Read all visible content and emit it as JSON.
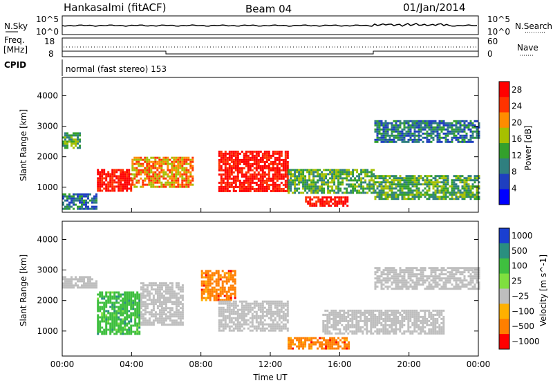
{
  "header": {
    "station": "Hankasalmi (fitACF)",
    "beam": "Beam 04",
    "date": "01/Jan/2014"
  },
  "summary_panels": {
    "nsky": {
      "label": "N.Sky",
      "tick_high": "10^5",
      "tick_low": "10^0"
    },
    "nsearch": {
      "label": "N.Search",
      "tick_high": "10^5",
      "tick_low": "10^0"
    },
    "freq": {
      "label_line1": "Freq.",
      "label_line2": "[MHz]",
      "tick_high": "18",
      "tick_low": "8"
    },
    "nave": {
      "label": "Nave",
      "tick_high": "60",
      "tick_low": "0"
    },
    "cpid": {
      "label": "CPID",
      "mode_text": "normal (fast stereo) 153"
    }
  },
  "chart_data": [
    {
      "type": "heatmap",
      "quantity": "Power",
      "ylabel": "Slant Range [km]",
      "xlabel": "Time UT",
      "x_ticks": [
        "00:00",
        "04:00",
        "08:00",
        "12:00",
        "16:00",
        "20:00",
        "00:00"
      ],
      "xlim_hours": [
        0,
        24
      ],
      "ylim_km": [
        180,
        4600
      ],
      "y_ticks": [
        1000,
        2000,
        3000,
        4000
      ],
      "colorbar": {
        "label": "Power [dB]",
        "range": [
          0,
          30
        ],
        "ticks": [
          4,
          8,
          12,
          16,
          20,
          24,
          28
        ],
        "colors": [
          "#0000ff",
          "#1f3fbf",
          "#2f7f7f",
          "#33a02c",
          "#a6c000",
          "#ff8c00",
          "#ff3300",
          "#ff0000"
        ]
      },
      "regions": [
        {
          "t0": 0.0,
          "t1": 1.0,
          "r0": 2300,
          "r1": 2800,
          "level": 12
        },
        {
          "t0": 0.0,
          "t1": 2.0,
          "r0": 300,
          "r1": 800,
          "level": 8
        },
        {
          "t0": 2.0,
          "t1": 4.0,
          "r0": 900,
          "r1": 1600,
          "level": 28
        },
        {
          "t0": 4.0,
          "t1": 7.5,
          "r0": 1000,
          "r1": 2000,
          "level": 20
        },
        {
          "t0": 9.0,
          "t1": 13.0,
          "r0": 900,
          "r1": 2200,
          "level": 28
        },
        {
          "t0": 13.0,
          "t1": 18.0,
          "r0": 800,
          "r1": 1600,
          "level": 12
        },
        {
          "t0": 14.0,
          "t1": 16.5,
          "r0": 400,
          "r1": 700,
          "level": 28
        },
        {
          "t0": 18.0,
          "t1": 24.0,
          "r0": 2500,
          "r1": 3200,
          "level": 8
        },
        {
          "t0": 18.0,
          "t1": 24.0,
          "r0": 600,
          "r1": 1400,
          "level": 12
        }
      ]
    },
    {
      "type": "heatmap",
      "quantity": "Velocity",
      "ylabel": "Slant Range [km]",
      "xlabel": "Time UT",
      "x_ticks": [
        "00:00",
        "04:00",
        "08:00",
        "12:00",
        "16:00",
        "20:00",
        "00:00"
      ],
      "xlim_hours": [
        0,
        24
      ],
      "ylim_km": [
        180,
        4600
      ],
      "y_ticks": [
        1000,
        2000,
        3000,
        4000
      ],
      "colorbar": {
        "label": "Velocity [m s^-1]",
        "tick_labels": [
          "1000",
          "500",
          "100",
          "25",
          "−25",
          "−100",
          "−500",
          "−1000"
        ],
        "colors": [
          "#1a3fd0",
          "#2a8f7f",
          "#3fbf3f",
          "#7fdf3f",
          "#bebebe",
          "#ffb000",
          "#ff7f00",
          "#ff0000"
        ]
      },
      "regions": [
        {
          "t0": 0.0,
          "t1": 2.0,
          "r0": 2400,
          "r1": 2800,
          "velocity": 0
        },
        {
          "t0": 2.0,
          "t1": 4.5,
          "r0": 900,
          "r1": 2300,
          "velocity": 150
        },
        {
          "t0": 4.5,
          "t1": 7.0,
          "r0": 1200,
          "r1": 2600,
          "velocity": 0
        },
        {
          "t0": 8.0,
          "t1": 10.0,
          "r0": 2000,
          "r1": 3000,
          "velocity": -400
        },
        {
          "t0": 9.0,
          "t1": 13.0,
          "r0": 1000,
          "r1": 2000,
          "velocity": 0
        },
        {
          "t0": 13.0,
          "t1": 16.5,
          "r0": 400,
          "r1": 800,
          "velocity": -300
        },
        {
          "t0": 15.0,
          "t1": 22.0,
          "r0": 900,
          "r1": 1700,
          "velocity": 0
        },
        {
          "t0": 18.0,
          "t1": 24.0,
          "r0": 2400,
          "r1": 3100,
          "velocity": 0
        }
      ]
    }
  ]
}
